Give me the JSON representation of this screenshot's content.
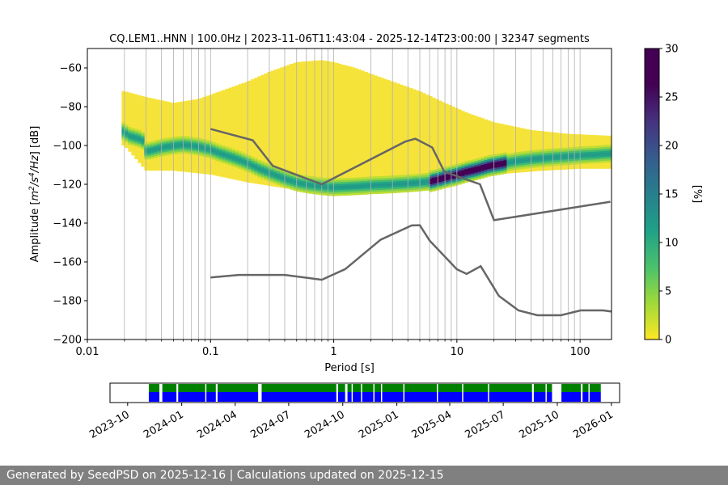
{
  "chart_data": [
    {
      "type": "heatmap",
      "title": "CQ.LEM1..HNN | 100.0Hz | 2023-11-06T11:43:04 - 2025-12-14T23:00:00 | 32347 segments",
      "xlabel": "Period [s]",
      "ylabel_parts": [
        "Amplitude [",
        "m",
        "2",
        "/s",
        "4",
        "/Hz",
        "] [dB]"
      ],
      "x_scale": "log",
      "xlim": [
        0.01,
        180
      ],
      "ylim": [
        -200,
        -50
      ],
      "x_ticks": [
        0.01,
        0.1,
        1,
        10,
        100
      ],
      "x_tick_labels": [
        "0.01",
        "0.1",
        "1",
        "10",
        "100"
      ],
      "y_ticks": [
        -200,
        -180,
        -160,
        -140,
        -120,
        -100,
        -80,
        -60
      ],
      "y_tick_labels": [
        "−200",
        "−180",
        "−160",
        "−140",
        "−120",
        "−100",
        "−80",
        "−60"
      ],
      "grid": "vertical lines at every log-decade subdivision",
      "colorbar": {
        "label": "[%]",
        "range": [
          0,
          30
        ],
        "ticks": [
          0,
          5,
          10,
          15,
          20,
          25,
          30
        ],
        "tick_labels": [
          "0",
          "5",
          "10",
          "15",
          "20",
          "25",
          "30"
        ],
        "colormap": "viridis_r"
      },
      "psd_mode": {
        "period_s": [
          0.019,
          0.022,
          0.025,
          0.028,
          0.03,
          0.035,
          0.04,
          0.05,
          0.06,
          0.07,
          0.08,
          0.1,
          0.12,
          0.15,
          0.2,
          0.25,
          0.3,
          0.4,
          0.5,
          0.6,
          0.8,
          1,
          1.5,
          2,
          3,
          4,
          5,
          6,
          7,
          8,
          10,
          12,
          15,
          18,
          20,
          30,
          40,
          60,
          80,
          100,
          140,
          180
        ],
        "amplitude_db": [
          -92,
          -95,
          -96,
          -97,
          -103,
          -102,
          -101,
          -100,
          -99.5,
          -100,
          -100.5,
          -102,
          -104,
          -106,
          -109,
          -112,
          -114,
          -117,
          -119,
          -120,
          -121,
          -121.5,
          -121,
          -120.5,
          -120,
          -119.5,
          -119,
          -118.5,
          -117.5,
          -116.5,
          -115,
          -113.5,
          -112,
          -110.5,
          -110,
          -108,
          -107,
          -106,
          -105.5,
          -105,
          -104.5,
          -104
        ]
      },
      "spread_above_db": [
        [
          0.02,
          -72
        ],
        [
          0.03,
          -75
        ],
        [
          0.05,
          -78
        ],
        [
          0.08,
          -76
        ],
        [
          0.12,
          -72
        ],
        [
          0.2,
          -67
        ],
        [
          0.3,
          -62
        ],
        [
          0.5,
          -57
        ],
        [
          0.8,
          -56
        ],
        [
          1,
          -57
        ],
        [
          1.5,
          -60
        ],
        [
          2,
          -63
        ],
        [
          3,
          -67
        ],
        [
          5,
          -72
        ],
        [
          8,
          -78
        ],
        [
          12,
          -83
        ],
        [
          20,
          -88
        ],
        [
          40,
          -92
        ],
        [
          80,
          -94
        ],
        [
          180,
          -95
        ]
      ],
      "spread_below_db": [
        [
          0.02,
          -100
        ],
        [
          0.03,
          -113
        ],
        [
          0.05,
          -113
        ],
        [
          0.1,
          -115
        ],
        [
          0.2,
          -119
        ],
        [
          0.5,
          -123
        ],
        [
          1,
          -125
        ],
        [
          2,
          -124
        ],
        [
          5,
          -122
        ],
        [
          10,
          -118
        ],
        [
          20,
          -115
        ],
        [
          50,
          -113
        ],
        [
          100,
          -112
        ],
        [
          180,
          -112
        ]
      ],
      "series": [
        {
          "period_s": [
            0.1,
            0.17,
            0.4,
            0.8,
            1.24,
            2.4,
            4.3,
            5.0,
            6.0,
            10.0,
            12.0,
            15.6,
            21.9,
            31.6,
            45.0,
            70.0,
            101.0,
            154.0,
            180.0
          ],
          "amplitude_db": [
            -168,
            -166.7,
            -166.7,
            -169.2,
            -163.7,
            -148.6,
            -141.2,
            -141.1,
            -149.0,
            -163.8,
            -166.2,
            -162.2,
            -177.5,
            -185.0,
            -187.5,
            -187.5,
            -185.0,
            -185.0,
            -185.6
          ]
        },
        {
          "period_s": [
            0.1,
            0.22,
            0.32,
            0.8,
            3.8,
            4.6,
            6.3,
            7.9,
            15.4,
            20.0,
            176.0
          ],
          "amplitude_db": [
            -91.5,
            -97.3,
            -110.5,
            -120.0,
            -98.0,
            -96.5,
            -101.0,
            -113.5,
            -120.0,
            -138.5,
            -129.0
          ]
        }
      ]
    },
    {
      "type": "timeline",
      "x_ticks": [
        "2023-10",
        "2024-01",
        "2024-04",
        "2024-07",
        "2024-10",
        "2025-01",
        "2025-04",
        "2025-07",
        "2025-10",
        "2026-01"
      ],
      "xlim": [
        "2023-09-01",
        "2026-01-15"
      ],
      "data_start": "2023-11-06",
      "data_end": "2025-12-14",
      "gaps": [
        [
          "2023-11-24",
          "2023-11-29"
        ],
        [
          "2023-12-23",
          "2023-12-26"
        ],
        [
          "2024-02-10",
          "2024-02-12"
        ],
        [
          "2024-02-28",
          "2024-03-02"
        ],
        [
          "2024-05-10",
          "2024-05-16"
        ],
        [
          "2024-09-20",
          "2024-09-23"
        ],
        [
          "2024-10-05",
          "2024-10-09"
        ],
        [
          "2024-10-16",
          "2024-10-18"
        ],
        [
          "2024-11-01",
          "2024-11-03"
        ],
        [
          "2024-11-22",
          "2024-11-24"
        ],
        [
          "2024-12-05",
          "2024-12-07"
        ],
        [
          "2025-01-12",
          "2025-01-14"
        ],
        [
          "2025-03-10",
          "2025-03-12"
        ],
        [
          "2025-04-22",
          "2025-04-24"
        ],
        [
          "2025-06-05",
          "2025-06-07"
        ],
        [
          "2025-08-19",
          "2025-08-22"
        ],
        [
          "2025-09-11",
          "2025-09-13"
        ],
        [
          "2025-09-22",
          "2025-10-08"
        ],
        [
          "2025-11-10",
          "2025-11-13"
        ],
        [
          "2025-11-23",
          "2025-11-25"
        ]
      ],
      "bar_colors": [
        "#008000",
        "#0000ff"
      ]
    }
  ],
  "footer": {
    "text": "Generated by SeedPSD on 2025-12-16 | Calculations updated on 2025-12-15"
  }
}
